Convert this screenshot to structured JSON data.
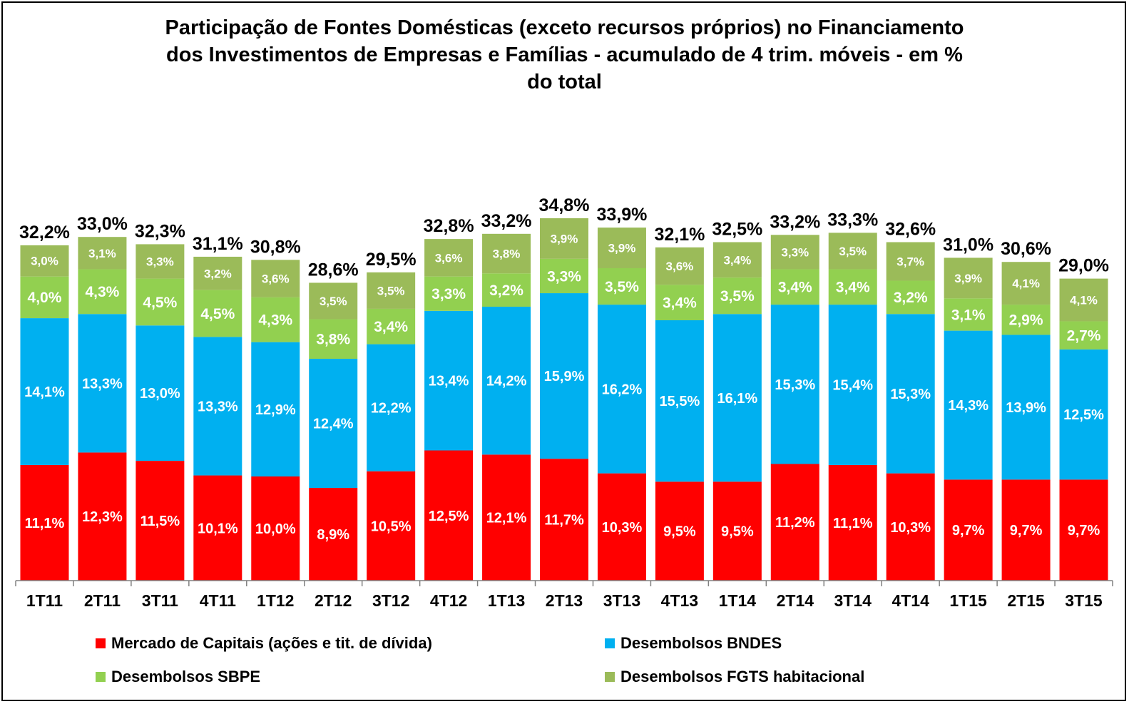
{
  "chart_data": {
    "type": "bar",
    "stacked": true,
    "title_lines": [
      "Participação de Fontes Domésticas (exceto recursos próprios) no Financiamento",
      "dos Investimentos de Empresas e Famílias - acumulado de 4 trim. móveis - em %",
      "do total"
    ],
    "categories": [
      "1T11",
      "2T11",
      "3T11",
      "4T11",
      "1T12",
      "2T12",
      "3T12",
      "4T12",
      "1T13",
      "2T13",
      "3T13",
      "4T13",
      "1T14",
      "2T14",
      "3T14",
      "4T14",
      "1T15",
      "2T15",
      "3T15"
    ],
    "series": [
      {
        "name": "Mercado de Capitais (ações e tit. de dívida)",
        "color": "#ff0000",
        "values": [
          11.1,
          12.3,
          11.5,
          10.1,
          10.0,
          8.9,
          10.5,
          12.5,
          12.1,
          11.7,
          10.3,
          9.5,
          9.5,
          11.2,
          11.1,
          10.3,
          9.7,
          9.7,
          9.7
        ],
        "labels": [
          "11,1%",
          "12,3%",
          "11,5%",
          "10,1%",
          "10,0%",
          "8,9%",
          "10,5%",
          "12,5%",
          "12,1%",
          "11,7%",
          "10,3%",
          "9,5%",
          "9,5%",
          "11,2%",
          "11,1%",
          "10,3%",
          "9,7%",
          "9,7%",
          "9,7%"
        ]
      },
      {
        "name": "Desembolsos BNDES",
        "color": "#00b0f0",
        "values": [
          14.1,
          13.3,
          13.0,
          13.3,
          12.9,
          12.4,
          12.2,
          13.4,
          14.2,
          15.9,
          16.2,
          15.5,
          16.1,
          15.3,
          15.4,
          15.3,
          14.3,
          13.9,
          12.5
        ],
        "labels": [
          "14,1%",
          "13,3%",
          "13,0%",
          "13,3%",
          "12,9%",
          "12,4%",
          "12,2%",
          "13,4%",
          "14,2%",
          "15,9%",
          "16,2%",
          "15,5%",
          "16,1%",
          "15,3%",
          "15,4%",
          "15,3%",
          "14,3%",
          "13,9%",
          "12,5%"
        ]
      },
      {
        "name": "Desembolsos SBPE",
        "color": "#92d050",
        "values": [
          4.0,
          4.3,
          4.5,
          4.5,
          4.3,
          3.8,
          3.4,
          3.3,
          3.2,
          3.3,
          3.5,
          3.4,
          3.5,
          3.4,
          3.4,
          3.2,
          3.1,
          2.9,
          2.7
        ],
        "labels": [
          "4,0%",
          "4,3%",
          "4,5%",
          "4,5%",
          "4,3%",
          "3,8%",
          "3,4%",
          "3,3%",
          "3,2%",
          "3,3%",
          "3,5%",
          "3,4%",
          "3,5%",
          "3,4%",
          "3,4%",
          "3,2%",
          "3,1%",
          "2,9%",
          "2,7%"
        ]
      },
      {
        "name": "Desembolsos FGTS habitacional",
        "color": "#9bbb59",
        "values": [
          3.0,
          3.1,
          3.3,
          3.2,
          3.6,
          3.5,
          3.5,
          3.6,
          3.8,
          3.9,
          3.9,
          3.6,
          3.4,
          3.3,
          3.5,
          3.7,
          3.9,
          4.1,
          4.1
        ],
        "labels": [
          "3,0%",
          "3,1%",
          "3,3%",
          "3,2%",
          "3,6%",
          "3,5%",
          "3,5%",
          "3,6%",
          "3,8%",
          "3,9%",
          "3,9%",
          "3,6%",
          "3,4%",
          "3,3%",
          "3,5%",
          "3,7%",
          "3,9%",
          "4,1%",
          "4,1%"
        ]
      }
    ],
    "totals": [
      32.2,
      33.0,
      32.3,
      31.1,
      30.8,
      28.6,
      29.5,
      32.8,
      33.2,
      34.8,
      33.9,
      32.1,
      32.5,
      33.2,
      33.3,
      32.6,
      31.0,
      30.6,
      29.0
    ],
    "total_labels": [
      "32,2%",
      "33,0%",
      "32,3%",
      "31,1%",
      "30,8%",
      "28,6%",
      "29,5%",
      "32,8%",
      "33,2%",
      "34,8%",
      "33,9%",
      "32,1%",
      "32,5%",
      "33,2%",
      "33,3%",
      "32,6%",
      "31,0%",
      "30,6%",
      "29,0%"
    ],
    "ylim": [
      0,
      35
    ],
    "grid": false,
    "legend_position": "bottom"
  }
}
